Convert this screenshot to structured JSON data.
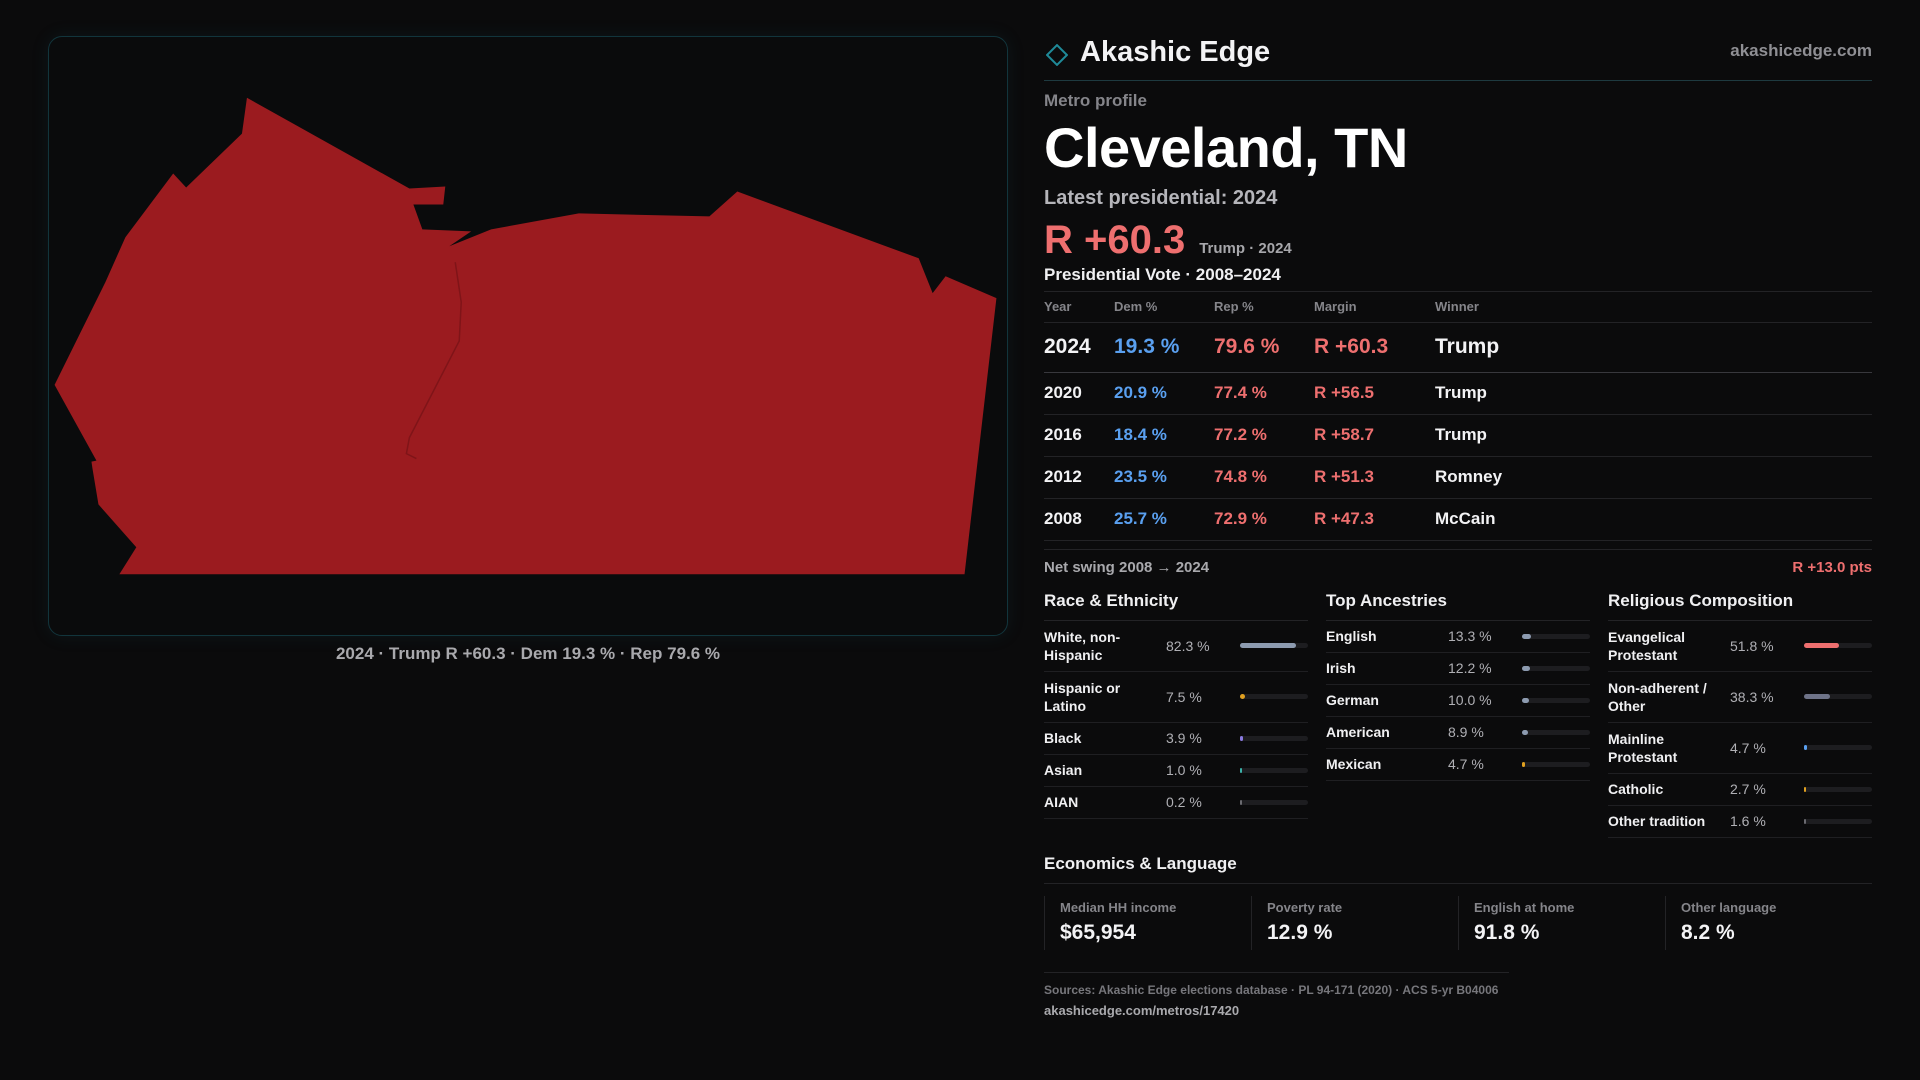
{
  "brand": {
    "name": "Akashic Edge",
    "url": "akashicedge.com",
    "accent": "#1f8a99"
  },
  "map": {
    "fill_color": "#9b1b1f",
    "caption": "2024 · Trump R +60.3 · Dem 19.3 % · Rep 79.6 %"
  },
  "profile": {
    "eyebrow": "Metro profile",
    "title": "Cleveland, TN",
    "latest_label": "Latest presidential: 2024",
    "headline_margin": "R +60.3",
    "headline_sub": "Trump · 2024"
  },
  "votes": {
    "title": "Presidential Vote · 2008–2024",
    "headers": {
      "year": "Year",
      "dem": "Dem %",
      "rep": "Rep %",
      "margin": "Margin",
      "winner": "Winner"
    },
    "rows": [
      {
        "year": "2024",
        "dem": "19.3 %",
        "rep": "79.6 %",
        "margin": "R +60.3",
        "winner": "Trump"
      },
      {
        "year": "2020",
        "dem": "20.9 %",
        "rep": "77.4 %",
        "margin": "R +56.5",
        "winner": "Trump"
      },
      {
        "year": "2016",
        "dem": "18.4 %",
        "rep": "77.2 %",
        "margin": "R +58.7",
        "winner": "Trump"
      },
      {
        "year": "2012",
        "dem": "23.5 %",
        "rep": "74.8 %",
        "margin": "R +51.3",
        "winner": "Romney"
      },
      {
        "year": "2008",
        "dem": "25.7 %",
        "rep": "72.9 %",
        "margin": "R +47.3",
        "winner": "McCain"
      }
    ],
    "swing_label": "Net swing 2008 → 2024",
    "swing_value": "R +13.0 pts"
  },
  "race": {
    "title": "Race & Ethnicity",
    "items": [
      {
        "label": "White, non-Hispanic",
        "value": "82.3 %",
        "pct": 82.3,
        "color": "#8d9bb0"
      },
      {
        "label": "Hispanic or Latino",
        "value": "7.5 %",
        "pct": 7.5,
        "color": "#e0a020"
      },
      {
        "label": "Black",
        "value": "3.9 %",
        "pct": 3.9,
        "color": "#8a7ae0"
      },
      {
        "label": "Asian",
        "value": "1.0 %",
        "pct": 1.0,
        "color": "#3bb0a8"
      },
      {
        "label": "AIAN",
        "value": "0.2 %",
        "pct": 0.2,
        "color": "#6a6a70"
      }
    ]
  },
  "ancestry": {
    "title": "Top Ancestries",
    "items": [
      {
        "label": "English",
        "value": "13.3 %",
        "pct": 13.3,
        "color": "#8d9bb0"
      },
      {
        "label": "Irish",
        "value": "12.2 %",
        "pct": 12.2,
        "color": "#8d9bb0"
      },
      {
        "label": "German",
        "value": "10.0 %",
        "pct": 10.0,
        "color": "#8d9bb0"
      },
      {
        "label": "American",
        "value": "8.9 %",
        "pct": 8.9,
        "color": "#8d9bb0"
      },
      {
        "label": "Mexican",
        "value": "4.7 %",
        "pct": 4.7,
        "color": "#e0a020"
      }
    ]
  },
  "religion": {
    "title": "Religious Composition",
    "items": [
      {
        "label": "Evangelical Protestant",
        "value": "51.8 %",
        "pct": 51.8,
        "color": "#ee6f6f"
      },
      {
        "label": "Non-adherent / Other",
        "value": "38.3 %",
        "pct": 38.3,
        "color": "#6e7388"
      },
      {
        "label": "Mainline Protestant",
        "value": "4.7 %",
        "pct": 4.7,
        "color": "#5aa0f0"
      },
      {
        "label": "Catholic",
        "value": "2.7 %",
        "pct": 2.7,
        "color": "#e0a020"
      },
      {
        "label": "Other tradition",
        "value": "1.6 %",
        "pct": 1.6,
        "color": "#6a6a70"
      }
    ]
  },
  "economics": {
    "title": "Economics & Language",
    "cards": [
      {
        "label": "Median HH income",
        "value": "$65,954"
      },
      {
        "label": "Poverty rate",
        "value": "12.9 %"
      },
      {
        "label": "English at home",
        "value": "91.8 %"
      },
      {
        "label": "Other language",
        "value": "8.2 %"
      }
    ]
  },
  "footer": {
    "sources": "Sources: Akashic Edge elections database · PL 94-171 (2020) · ACS 5-yr B04006",
    "url": "akashicedge.com/metros/17420"
  }
}
